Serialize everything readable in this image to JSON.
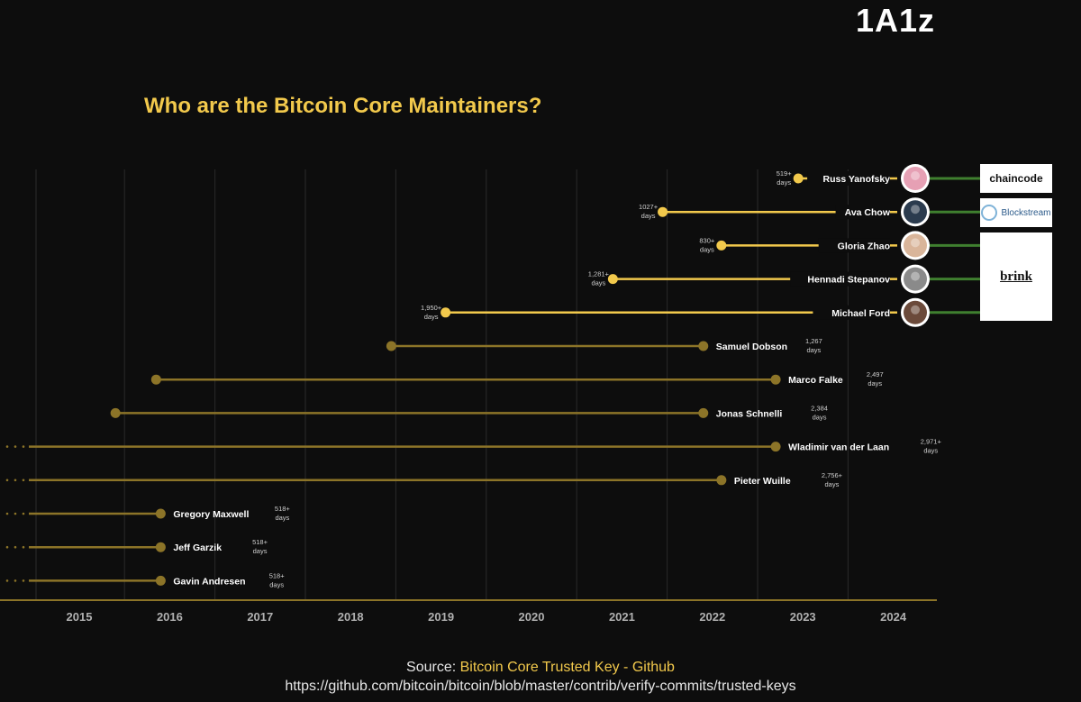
{
  "brand": "1A1z",
  "title": "Who are the Bitcoin Core Maintainers?",
  "source": {
    "label": "Source: ",
    "link_text": "Bitcoin Core Trusted Key - Github",
    "url": "https://github.com/bitcoin/bitcoin/blob/master/contrib/verify-commits/trusted-keys"
  },
  "affiliations": {
    "chaincode": "chaincode",
    "blockstream": "Blockstream",
    "brink": "brink"
  },
  "colors": {
    "active": "#f2c94c",
    "former": "#8c7428",
    "affiliation_line": "#3f7f2f",
    "grid": "#2a2a2a",
    "axis": "#8c7428",
    "tick_text": "#b0b0b0",
    "days_text": "#cfcfcf"
  },
  "chart_data": {
    "type": "timeline",
    "title": "Who are the Bitcoin Core Maintainers?",
    "x_ticks": [
      "2015",
      "2016",
      "2017",
      "2018",
      "2019",
      "2020",
      "2021",
      "2022",
      "2023",
      "2024"
    ],
    "xlim": [
      2014.45,
      2024.5
    ],
    "series": [
      {
        "name": "Russ Yanofsky",
        "start": 2022.95,
        "end": null,
        "days": "519+",
        "status": "active",
        "affiliation": "chaincode"
      },
      {
        "name": "Ava Chow",
        "start": 2021.45,
        "end": null,
        "days": "1027+",
        "status": "active",
        "affiliation": "blockstream"
      },
      {
        "name": "Gloria Zhao",
        "start": 2022.1,
        "end": null,
        "days": "830+",
        "status": "active",
        "affiliation": "brink"
      },
      {
        "name": "Hennadi Stepanov",
        "start": 2020.9,
        "end": null,
        "days": "1,281+",
        "status": "active",
        "affiliation": "brink"
      },
      {
        "name": "Michael Ford",
        "start": 2019.05,
        "end": null,
        "days": "1,950+",
        "status": "active",
        "affiliation": "brink"
      },
      {
        "name": "Samuel Dobson",
        "start": 2018.45,
        "end": 2021.9,
        "days": "1,267",
        "status": "former"
      },
      {
        "name": "Marco Falke",
        "start": 2015.85,
        "end": 2022.7,
        "days": "2,497",
        "status": "former"
      },
      {
        "name": "Jonas Schnelli",
        "start": 2015.4,
        "end": 2021.9,
        "days": "2,384",
        "status": "former"
      },
      {
        "name": "Wladimir van der Laan",
        "start": null,
        "end": 2022.7,
        "days": "2,971+",
        "status": "former"
      },
      {
        "name": "Pieter Wuille",
        "start": null,
        "end": 2022.1,
        "days": "2,756+",
        "status": "former"
      },
      {
        "name": "Gregory Maxwell",
        "start": null,
        "end": 2015.9,
        "days": "518+",
        "status": "former"
      },
      {
        "name": "Jeff Garzik",
        "start": null,
        "end": 2015.9,
        "days": "518+",
        "status": "former"
      },
      {
        "name": "Gavin Andresen",
        "start": null,
        "end": 2015.9,
        "days": "518+",
        "status": "former"
      }
    ],
    "days_unit": "days"
  }
}
